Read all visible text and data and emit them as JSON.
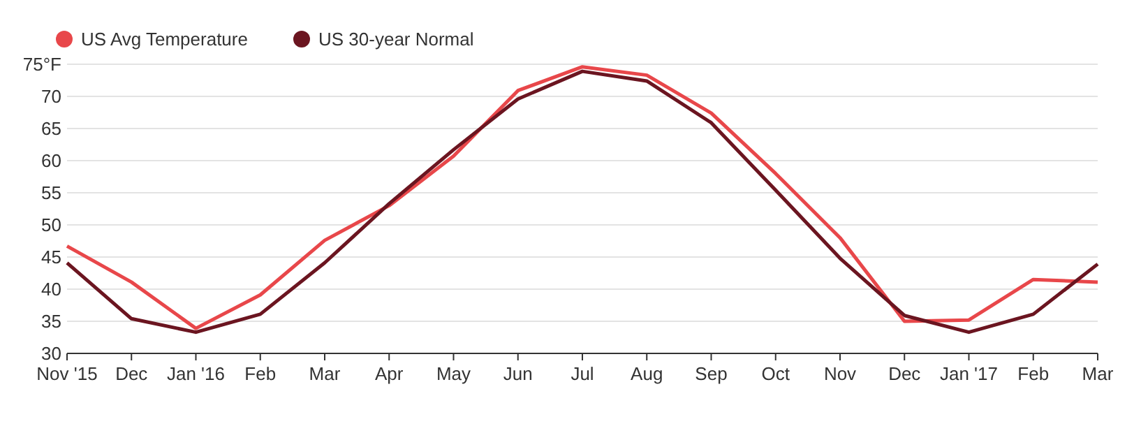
{
  "chart_data": {
    "type": "line",
    "categories": [
      "Nov '15",
      "Dec",
      "Jan '16",
      "Feb",
      "Mar",
      "Apr",
      "May",
      "Jun",
      "Jul",
      "Aug",
      "Sep",
      "Oct",
      "Nov",
      "Dec",
      "Jan '17",
      "Feb",
      "Mar"
    ],
    "series": [
      {
        "name": "US Avg Temperature",
        "color": "#e8474a",
        "values": [
          46.7,
          41.1,
          33.9,
          39.1,
          47.6,
          53,
          60.7,
          70.9,
          74.6,
          73.3,
          67.4,
          58,
          48,
          35,
          35.2,
          41.5,
          41.1
        ]
      },
      {
        "name": "US 30-year Normal",
        "color": "#6b1520",
        "values": [
          44.1,
          35.4,
          33.3,
          36.1,
          44.1,
          53.3,
          61.7,
          69.6,
          73.9,
          72.4,
          65.9,
          55.4,
          44.8,
          35.9,
          33.3,
          36.1,
          43.9
        ]
      }
    ],
    "ylim": [
      30,
      75
    ],
    "yticks": [
      30,
      35,
      40,
      45,
      50,
      55,
      60,
      65,
      70,
      {
        "value": 75,
        "label": "75°F"
      }
    ],
    "grid": "y",
    "legend": "top left",
    "marker": "none",
    "line_style": "solid"
  }
}
